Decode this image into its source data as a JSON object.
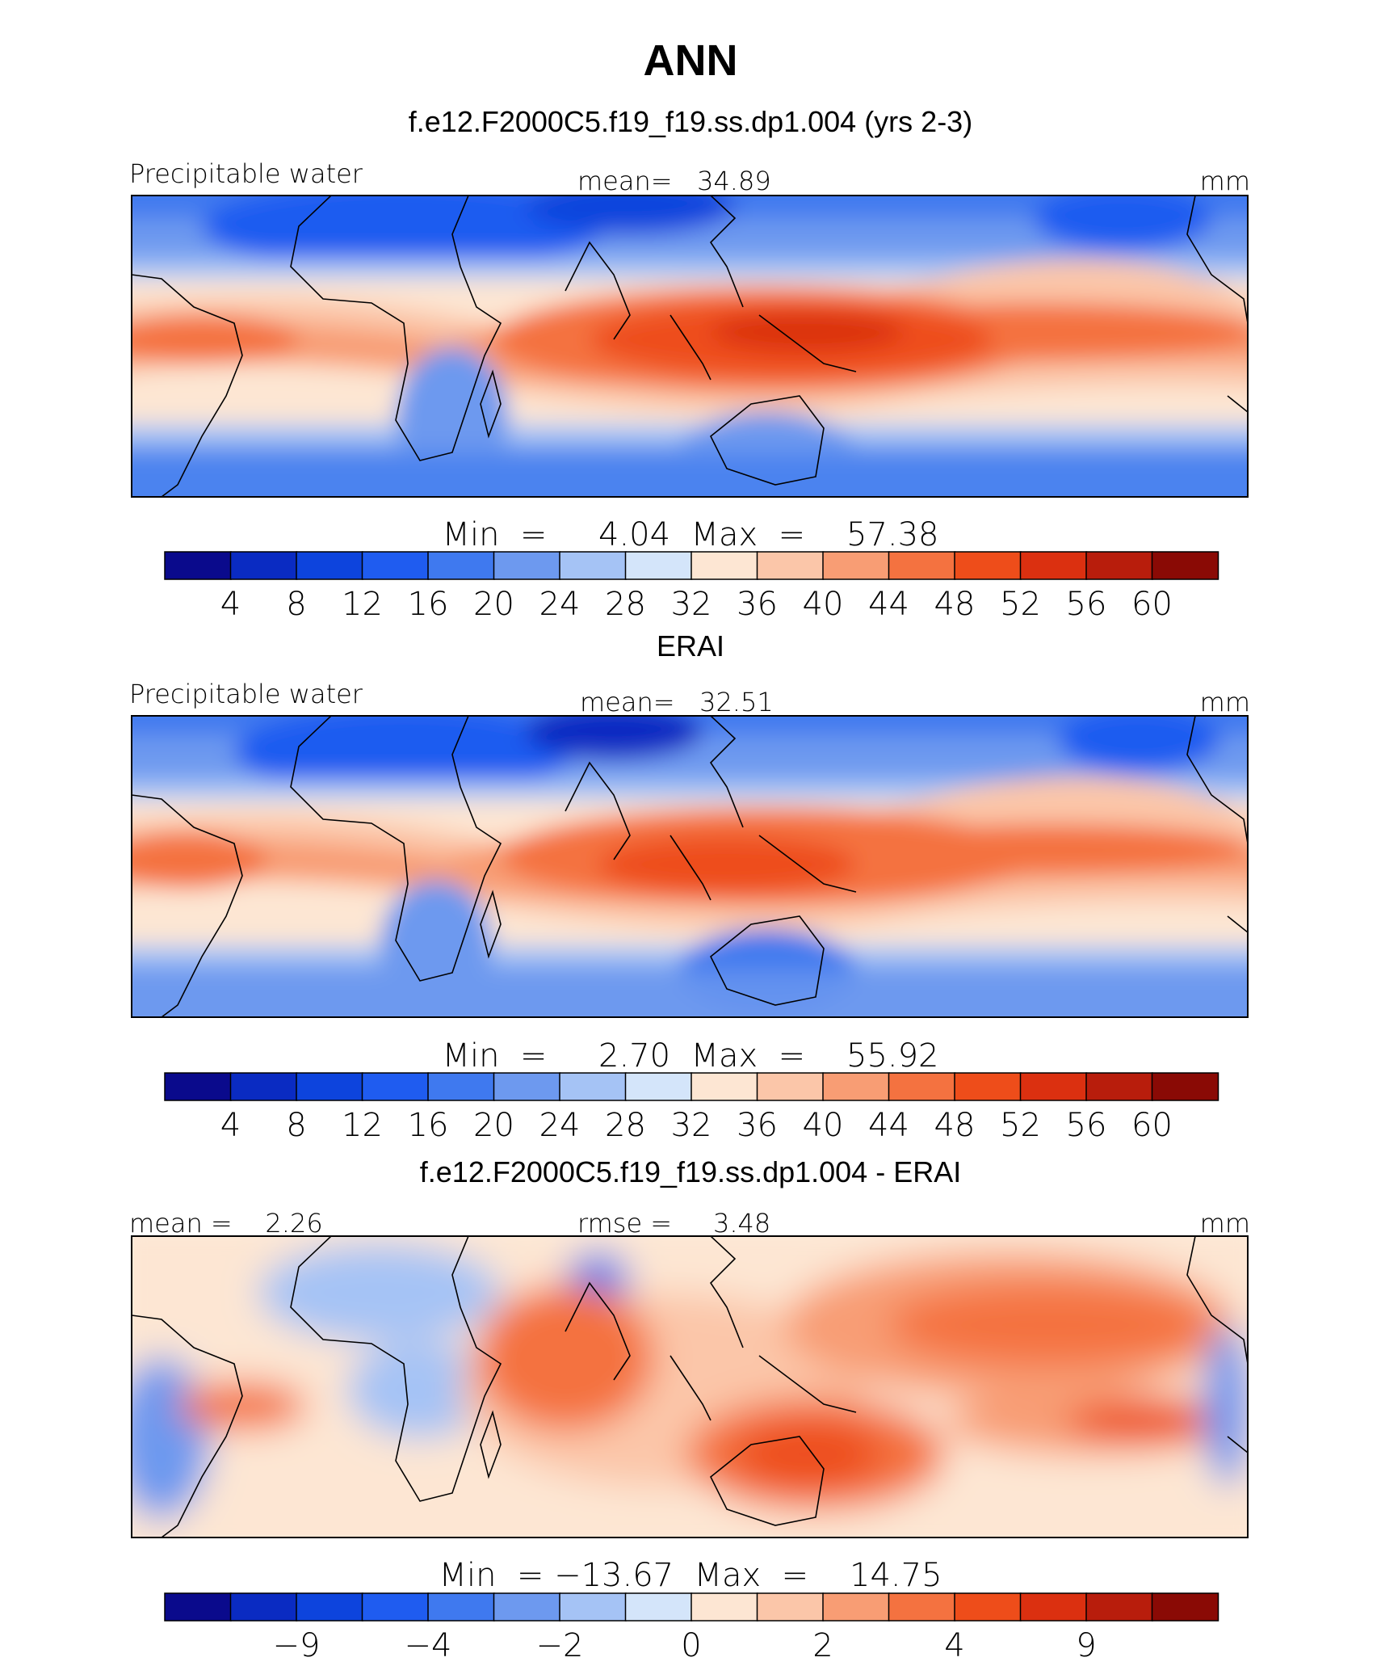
{
  "page": {
    "title": "ANN",
    "palette": [
      "#0a0a8c",
      "#0a2bc2",
      "#0d44dd",
      "#1f5cf0",
      "#3f79ef",
      "#6d99ef",
      "#a5c3f5",
      "#d4e5fa",
      "#fde6d3",
      "#fbc6a9",
      "#f89d74",
      "#f47240",
      "#ee4d1a",
      "#db3010",
      "#b81d0c",
      "#8a0a05"
    ]
  },
  "chart_data": [
    {
      "type": "heatmap",
      "title": "f.e12.F2000C5.f19_f19.ss.dp1.004 (yrs 2-3)",
      "left_label": "Precipitable water",
      "center_label": "mean=   34.89",
      "units": "mm",
      "stats": "Min  =     4.04  Max  =    57.38",
      "colorbar_ticks": [
        "4",
        "8",
        "12",
        "16",
        "20",
        "24",
        "28",
        "32",
        "36",
        "40",
        "44",
        "48",
        "52",
        "56",
        "60"
      ],
      "tick_edges": [
        1,
        2,
        3,
        4,
        5,
        6,
        7,
        8,
        9,
        10,
        11,
        12,
        13,
        14,
        15
      ],
      "levels": [
        4,
        8,
        12,
        16,
        20,
        24,
        28,
        32,
        36,
        40,
        44,
        48,
        52,
        56,
        60
      ],
      "mean": 34.89,
      "min": 4.04,
      "max": 57.38
    },
    {
      "type": "heatmap",
      "title": "ERAI",
      "left_label": "Precipitable water",
      "center_label": "mean=   32.51",
      "units": "mm",
      "stats": "Min  =     2.70  Max  =    55.92",
      "colorbar_ticks": [
        "4",
        "8",
        "12",
        "16",
        "20",
        "24",
        "28",
        "32",
        "36",
        "40",
        "44",
        "48",
        "52",
        "56",
        "60"
      ],
      "tick_edges": [
        1,
        2,
        3,
        4,
        5,
        6,
        7,
        8,
        9,
        10,
        11,
        12,
        13,
        14,
        15
      ],
      "levels": [
        4,
        8,
        12,
        16,
        20,
        24,
        28,
        32,
        36,
        40,
        44,
        48,
        52,
        56,
        60
      ],
      "mean": 32.51,
      "min": 2.7,
      "max": 55.92
    },
    {
      "type": "heatmap",
      "title": "f.e12.F2000C5.f19_f19.ss.dp1.004 - ERAI",
      "left_label": "mean =    2.26",
      "center_label": "rmse =     3.48",
      "units": "mm",
      "stats": "Min  = −13.67  Max  =    14.75",
      "colorbar_ticks": [
        "−9",
        "−4",
        "−2",
        "0",
        "2",
        "4",
        "9"
      ],
      "tick_edges": [
        2,
        4,
        6,
        8,
        10,
        12,
        14
      ],
      "levels": [
        -9,
        -4,
        -2,
        0,
        2,
        4,
        9
      ],
      "mean": 2.26,
      "rmse": 3.48,
      "min": -13.67,
      "max": 14.75
    }
  ]
}
